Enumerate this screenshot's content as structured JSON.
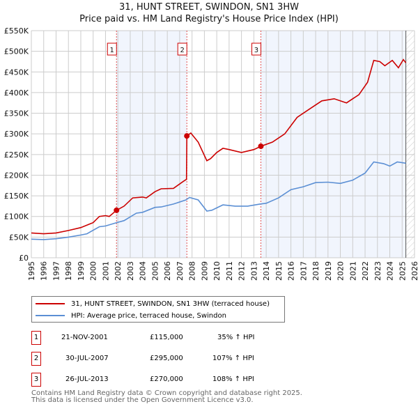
{
  "chart_data": {
    "type": "line",
    "title": "31, HUNT STREET, SWINDON, SN1 3HW",
    "subtitle": "Price paid vs. HM Land Registry's House Price Index (HPI)",
    "xlim": [
      1995,
      2026
    ],
    "ylim": [
      0,
      550000
    ],
    "x_ticks": [
      "1995",
      "1996",
      "1997",
      "1998",
      "1999",
      "2000",
      "2001",
      "2002",
      "2003",
      "2004",
      "2005",
      "2006",
      "2007",
      "2008",
      "2009",
      "2010",
      "2011",
      "2012",
      "2013",
      "2014",
      "2015",
      "2016",
      "2017",
      "2018",
      "2019",
      "2020",
      "2021",
      "2022",
      "2023",
      "2024",
      "2025",
      "2026"
    ],
    "y_ticks": [
      {
        "v": 0,
        "label": "£0"
      },
      {
        "v": 50000,
        "label": "£50K"
      },
      {
        "v": 100000,
        "label": "£100K"
      },
      {
        "v": 150000,
        "label": "£150K"
      },
      {
        "v": 200000,
        "label": "£200K"
      },
      {
        "v": 250000,
        "label": "£250K"
      },
      {
        "v": 300000,
        "label": "£300K"
      },
      {
        "v": 350000,
        "label": "£350K"
      },
      {
        "v": 400000,
        "label": "£400K"
      },
      {
        "v": 450000,
        "label": "£450K"
      },
      {
        "v": 500000,
        "label": "£500K"
      },
      {
        "v": 550000,
        "label": "£550K"
      }
    ],
    "grid": true,
    "data_end": 2025.3,
    "series": [
      {
        "name": "31, HUNT STREET, SWINDON, SN1 3HW (terraced house)",
        "color": "#cc0000",
        "x": [
          1995,
          1996,
          1997,
          1998,
          1999,
          2000,
          2000.5,
          2001,
          2001.3,
          2001.9,
          2002.5,
          2003.2,
          2004,
          2004.3,
          2005,
          2005.5,
          2006.5,
          2007.3,
          2007.55,
          2007.58,
          2007.9,
          2008.5,
          2009.2,
          2009.5,
          2010,
          2010.5,
          2011,
          2012,
          2013,
          2013.57,
          2014.5,
          2015.5,
          2016.5,
          2017.5,
          2018.5,
          2019.5,
          2020.5,
          2021.5,
          2022.2,
          2022.7,
          2023.2,
          2023.6,
          2024.2,
          2024.7,
          2025.1,
          2025.3
        ],
        "y": [
          60000,
          58000,
          60000,
          66000,
          73000,
          85000,
          100000,
          102000,
          100000,
          115000,
          125000,
          145000,
          147000,
          145000,
          160000,
          167000,
          168000,
          185000,
          190000,
          295000,
          302000,
          280000,
          235000,
          240000,
          255000,
          265000,
          262000,
          255000,
          262000,
          270000,
          280000,
          300000,
          340000,
          360000,
          380000,
          385000,
          375000,
          395000,
          425000,
          478000,
          475000,
          465000,
          478000,
          460000,
          480000,
          472000
        ]
      },
      {
        "name": "HPI: Average price, terraced house, Swindon",
        "color": "#5b8fd4",
        "x": [
          1995,
          1996,
          1997,
          1998,
          1999,
          1999.5,
          2000.5,
          2001,
          2001.9,
          2002.5,
          2003.5,
          2004,
          2005,
          2005.5,
          2006.5,
          2007.5,
          2007.8,
          2008.5,
          2009.2,
          2009.6,
          2010.5,
          2011.5,
          2012.5,
          2013.5,
          2014,
          2015,
          2016,
          2017,
          2018,
          2019,
          2020,
          2021,
          2022,
          2022.7,
          2023.5,
          2024,
          2024.6,
          2025.3
        ],
        "y": [
          45000,
          44000,
          46000,
          50000,
          55000,
          58000,
          75000,
          77000,
          85000,
          90000,
          108000,
          110000,
          122000,
          123000,
          130000,
          140000,
          146000,
          140000,
          113000,
          115000,
          128000,
          125000,
          125000,
          130000,
          132000,
          145000,
          165000,
          172000,
          182000,
          183000,
          180000,
          188000,
          205000,
          232000,
          228000,
          222000,
          232000,
          229000
        ]
      }
    ],
    "sales": [
      {
        "n": "1",
        "x": 2001.89,
        "y": 115000,
        "date": "21-NOV-2001",
        "price": "£115,000",
        "hpi": "35% ↑ HPI"
      },
      {
        "n": "2",
        "x": 2007.58,
        "y": 295000,
        "date": "30-JUL-2007",
        "price": "£295,000",
        "hpi": "107% ↑ HPI"
      },
      {
        "n": "3",
        "x": 2013.57,
        "y": 270000,
        "date": "26-JUL-2013",
        "price": "£270,000",
        "hpi": "108% ↑ HPI"
      }
    ]
  },
  "footer": {
    "line1": "Contains HM Land Registry data © Crown copyright and database right 2025.",
    "line2": "This data is licensed under the Open Government Licence v3.0."
  }
}
